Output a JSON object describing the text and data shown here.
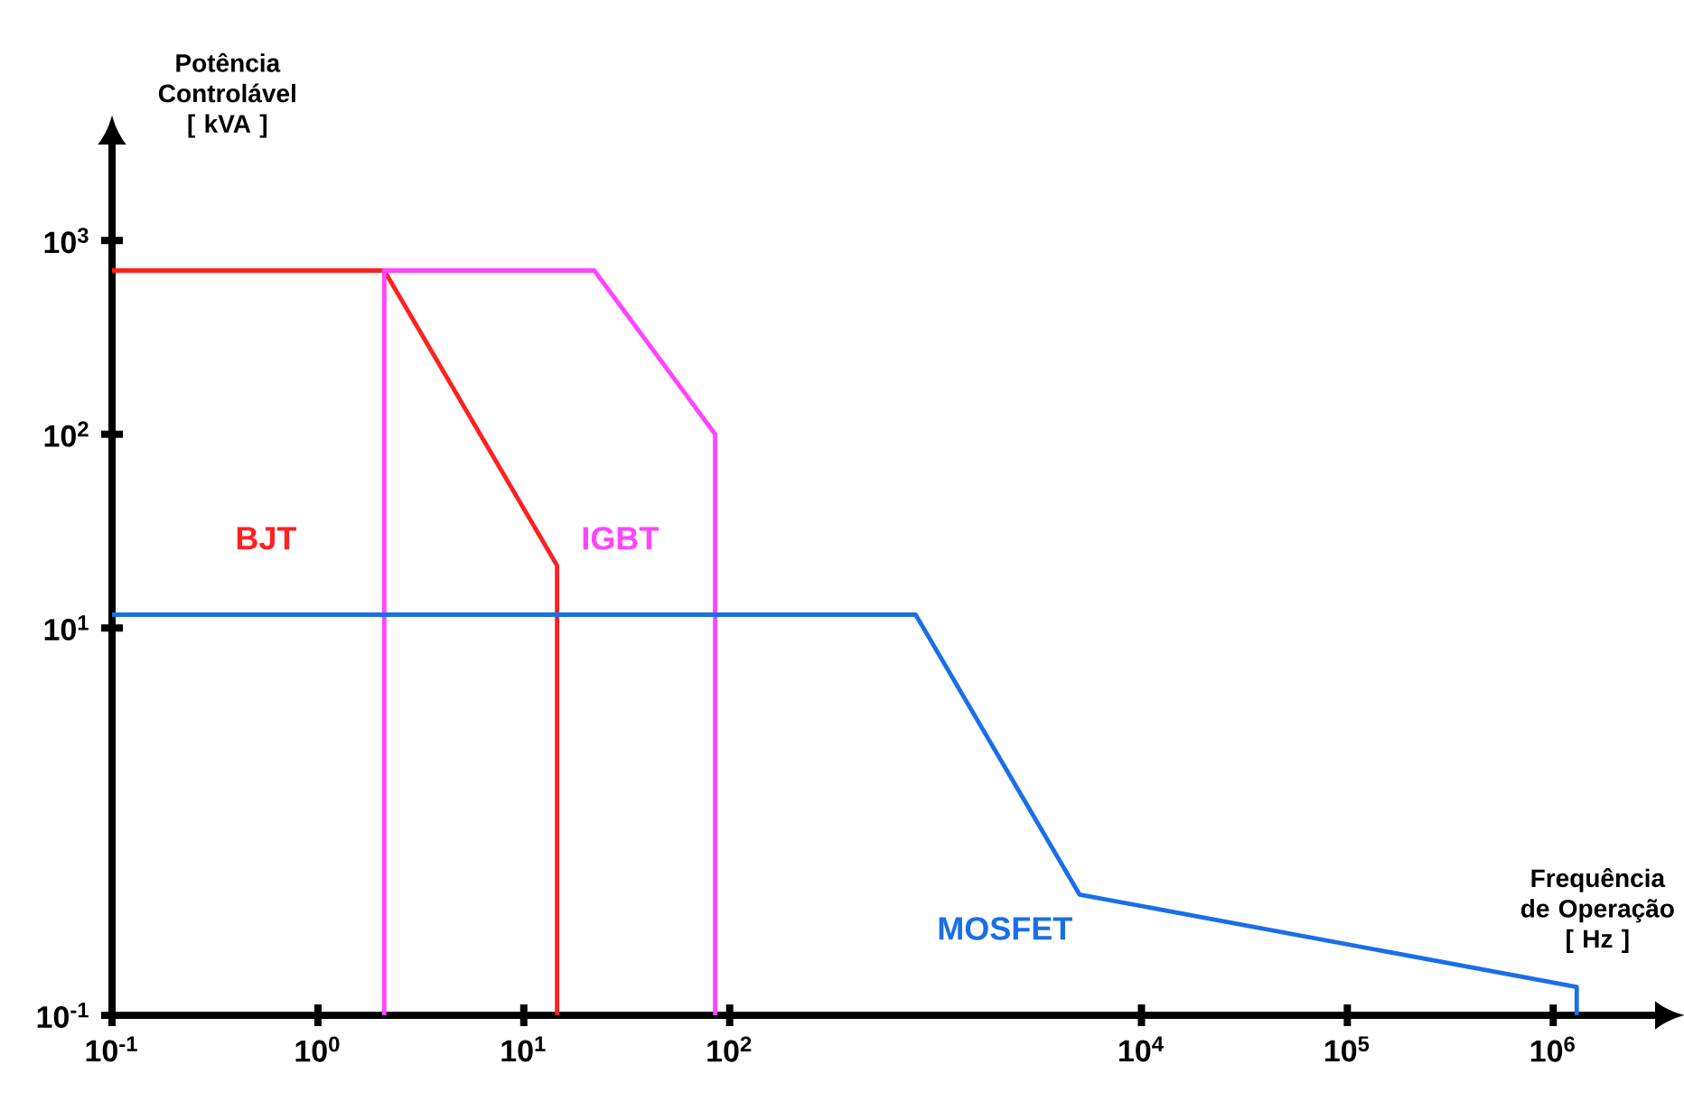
{
  "chart_data": {
    "type": "line",
    "xlabel": "Frequência de Operação [ Hz ]",
    "ylabel": "Potência Controlável [ kVA ]",
    "log": "xy",
    "xlim": [
      0.1,
      3000000
    ],
    "ylim": [
      0.1,
      3000
    ],
    "xticks": [
      {
        "value": 0.1,
        "label": "10$^{-1}$"
      },
      {
        "value": 1,
        "label": "10$^{0}$"
      },
      {
        "value": 10,
        "label": "10$^{1}$"
      },
      {
        "value": 100,
        "label": "10$^{2}$"
      },
      {
        "value": 10000,
        "label": "10$^{4}$"
      },
      {
        "value": 100000,
        "label": "10$^{5}$"
      },
      {
        "value": 1000000,
        "label": "10$^{6}$"
      }
    ],
    "yticks": [
      {
        "value": 0.1,
        "label": "10$^{-1}$"
      },
      {
        "value": 10,
        "label": "10$^{1}$"
      },
      {
        "value": 100,
        "label": "10$^{2}$"
      },
      {
        "value": 1000,
        "label": "10$^{3}$"
      }
    ],
    "grid": false,
    "legend": false,
    "series": [
      {
        "name": "BJT",
        "color": "#ff2020",
        "x": [
          0.1,
          2.1,
          14.5,
          14.5
        ],
        "values": [
          700,
          700,
          21,
          0.1
        ]
      },
      {
        "name": "IGBT",
        "color": "#ff44ff",
        "x": [
          2.1,
          2.1,
          22,
          85,
          85
        ],
        "values": [
          0.1,
          700,
          700,
          100,
          0.1
        ]
      },
      {
        "name": "MOSFET",
        "color": "#1a6ee8",
        "x": [
          0.1,
          800,
          5000,
          1300000,
          1300000
        ],
        "values": [
          11.7,
          11.7,
          0.42,
          0.14,
          0.1
        ]
      }
    ]
  }
}
